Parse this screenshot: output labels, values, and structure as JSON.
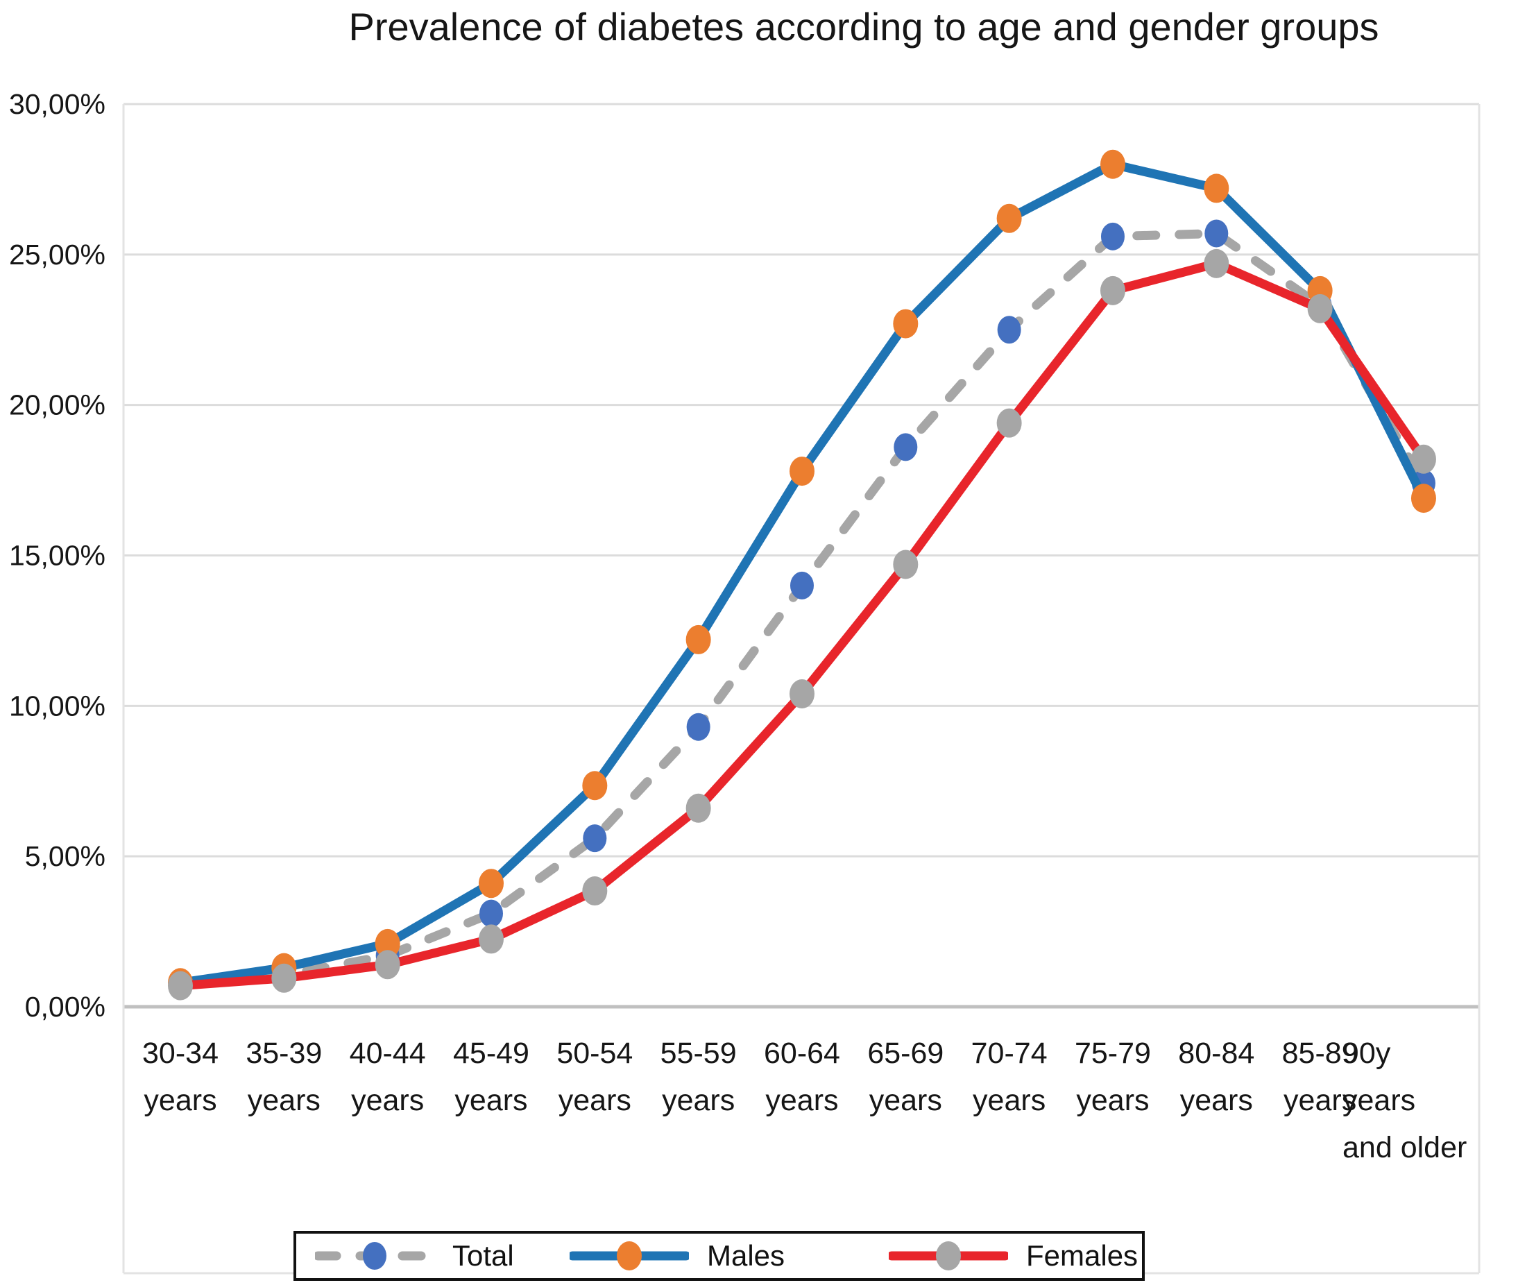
{
  "title": "Prevalence of diabetes according to age and gender groups",
  "y_axis": {
    "tick_labels_top_to_bottom": [
      "30,00%",
      "25,00%",
      "20,00%",
      "15,00%",
      "10,00%",
      "5,00%",
      "0,00%"
    ]
  },
  "legend": {
    "items": [
      {
        "label": "Total"
      },
      {
        "label": "Males"
      },
      {
        "label": "Females"
      }
    ]
  },
  "colors": {
    "total_line": "#A6A6A6",
    "total_marker": "#4470C0",
    "males_line": "#1F74B4",
    "males_marker": "#EC7E2F",
    "females_line": "#E8252B",
    "females_marker": "#A6A6A6",
    "gridline": "#DCDCDC",
    "zero_line": "#C0C0C0",
    "frame": "#E3E3E3",
    "text": "#161616"
  },
  "chart_data": {
    "type": "line",
    "title": "Prevalence of diabetes according to age and gender groups",
    "xlabel": "",
    "ylabel": "",
    "ylim": [
      0,
      30
    ],
    "y_tick_step": 5,
    "grid": true,
    "legend_position": "bottom",
    "categories": [
      [
        "30-34",
        "years"
      ],
      [
        "35-39",
        "years"
      ],
      [
        "40-44",
        "years"
      ],
      [
        "45-49",
        "years"
      ],
      [
        "50-54",
        "years"
      ],
      [
        "55-59",
        "years"
      ],
      [
        "60-64",
        "years"
      ],
      [
        "65-69",
        "years"
      ],
      [
        "70-74",
        "years"
      ],
      [
        "75-79",
        "years"
      ],
      [
        "80-84",
        "years"
      ],
      [
        "85-89",
        "years"
      ],
      [
        "90y",
        "years",
        "and older"
      ]
    ],
    "series": [
      {
        "name": "Total",
        "dashed": true,
        "line_color_key": "total_line",
        "marker_color_key": "total_marker",
        "values": [
          0.75,
          1.05,
          1.7,
          3.1,
          5.6,
          9.3,
          14.0,
          18.6,
          22.5,
          25.6,
          25.7,
          23.3,
          17.4
        ]
      },
      {
        "name": "Males",
        "dashed": false,
        "line_color_key": "males_line",
        "marker_color_key": "males_marker",
        "values": [
          0.8,
          1.3,
          2.1,
          4.1,
          7.35,
          12.2,
          17.8,
          22.7,
          26.2,
          28.0,
          27.2,
          23.8,
          16.9
        ]
      },
      {
        "name": "Females",
        "dashed": false,
        "line_color_key": "females_line",
        "marker_color_key": "females_marker",
        "values": [
          0.7,
          0.95,
          1.4,
          2.25,
          3.85,
          6.6,
          10.4,
          14.7,
          19.4,
          23.8,
          24.7,
          23.2,
          18.2
        ]
      }
    ]
  }
}
